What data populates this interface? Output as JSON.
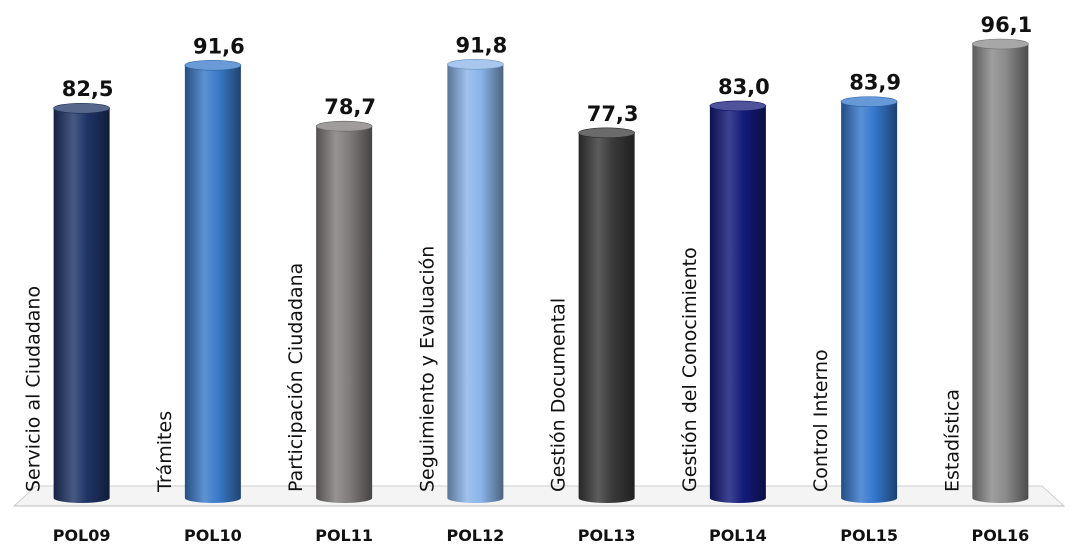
{
  "chart_data": {
    "type": "bar",
    "title": "",
    "xlabel": "",
    "ylabel": "",
    "ylim": [
      0,
      100
    ],
    "grid": false,
    "legend": "none",
    "categories": [
      "POL09",
      "POL10",
      "POL11",
      "POL12",
      "POL13",
      "POL14",
      "POL15",
      "POL16"
    ],
    "series": [
      {
        "values": [
          82.5,
          91.6,
          78.7,
          91.8,
          77.3,
          83.0,
          83.9,
          96.1
        ]
      }
    ],
    "value_labels": [
      "82,5",
      "91,6",
      "78,7",
      "91,8",
      "77,3",
      "83,0",
      "83,9",
      "96,1"
    ],
    "bar_names": [
      "Servicio al Ciudadano",
      "Trámites",
      "Participación Ciudadana",
      "Seguimiento y Evaluación",
      "Gestión Documental",
      "Gestión del Conocimiento",
      "Control Interno",
      "Estadística"
    ],
    "bar_colors": [
      "#1f3466",
      "#3a7ac8",
      "#7f7b7a",
      "#8ab4e8",
      "#3a3a3a",
      "#131a7a",
      "#3477cc",
      "#8a8a8a"
    ]
  }
}
